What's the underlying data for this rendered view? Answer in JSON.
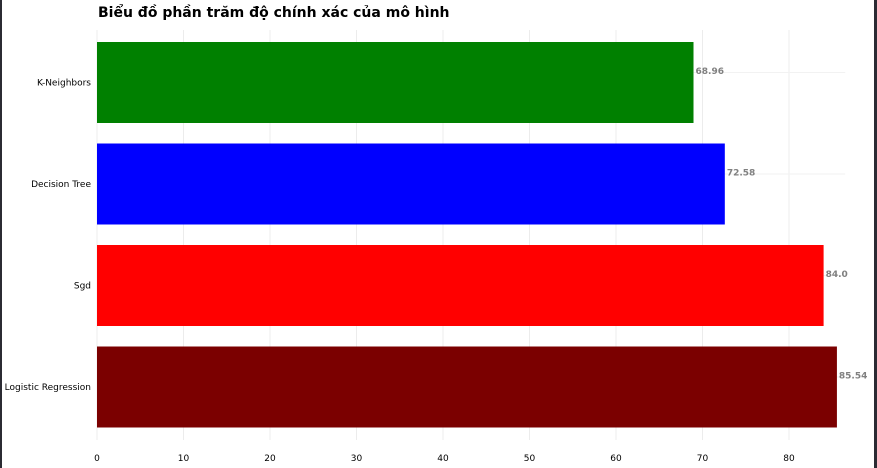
{
  "chart_data": {
    "type": "bar",
    "orientation": "horizontal",
    "title": "Biểu đồ phần trăm độ chính xác của mô hình",
    "xlabel": "",
    "ylabel": "",
    "categories": [
      "K-Neighbors",
      "Decision Tree",
      "Sgd",
      "Logistic Regression"
    ],
    "values": [
      68.96,
      72.58,
      84.0,
      85.54
    ],
    "value_labels": [
      "68.96",
      "72.58",
      "84.0",
      "85.54"
    ],
    "colors": [
      "#008000",
      "#0000ff",
      "#ff0000",
      "#7b0000"
    ],
    "x_ticks": [
      "0",
      "10",
      "20",
      "30",
      "40",
      "50",
      "60",
      "70",
      "80"
    ],
    "xlim": [
      0,
      86.5
    ],
    "grid": true,
    "legend": "none"
  }
}
